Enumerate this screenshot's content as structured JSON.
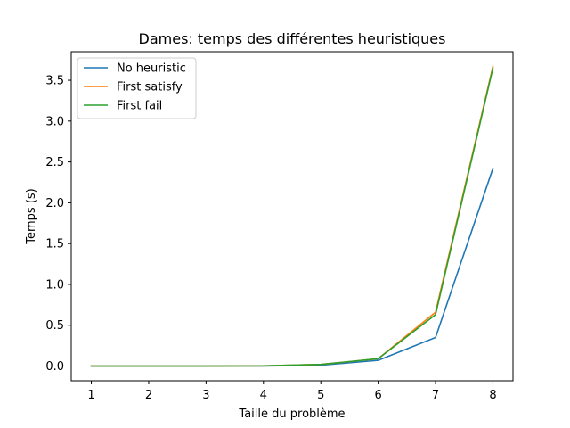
{
  "chart_data": {
    "type": "line",
    "title": "Dames: temps des différentes heuristiques",
    "xlabel": "Taille du problème",
    "ylabel": "Temps (s)",
    "x": [
      1,
      2,
      3,
      4,
      5,
      6,
      7,
      8
    ],
    "xlim": [
      0.65,
      8.35
    ],
    "ylim": [
      -0.18,
      3.85
    ],
    "xticks": [
      1,
      2,
      3,
      4,
      5,
      6,
      7,
      8
    ],
    "yticks": [
      0.0,
      0.5,
      1.0,
      1.5,
      2.0,
      2.5,
      3.0,
      3.5
    ],
    "xtick_labels": [
      "1",
      "2",
      "3",
      "4",
      "5",
      "6",
      "7",
      "8"
    ],
    "ytick_labels": [
      "0.0",
      "0.5",
      "1.0",
      "1.5",
      "2.0",
      "2.5",
      "3.0",
      "3.5"
    ],
    "grid": false,
    "legend_position": "top-left",
    "series": [
      {
        "name": "No heuristic",
        "color": "#1f77b4",
        "values": [
          0.0,
          0.0,
          0.0,
          0.001,
          0.01,
          0.07,
          0.35,
          2.42
        ]
      },
      {
        "name": "First satisfy",
        "color": "#ff7f0e",
        "values": [
          0.0,
          0.0,
          0.0,
          0.002,
          0.02,
          0.09,
          0.66,
          3.67
        ]
      },
      {
        "name": "First fail",
        "color": "#2ca02c",
        "values": [
          0.0,
          0.0,
          0.0,
          0.002,
          0.02,
          0.09,
          0.63,
          3.65
        ]
      }
    ]
  }
}
